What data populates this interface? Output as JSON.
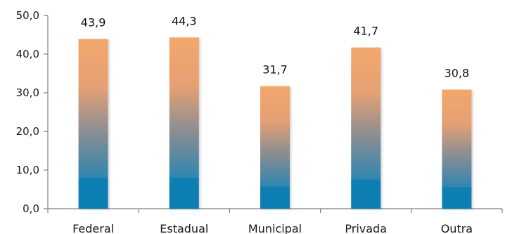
{
  "chart_data": {
    "type": "bar",
    "categories": [
      "Federal",
      "Estadual",
      "Municipal",
      "Privada",
      "Outra"
    ],
    "values": [
      43.9,
      44.3,
      31.7,
      41.7,
      30.8
    ],
    "value_labels": [
      "43,9",
      "44,3",
      "31,7",
      "41,7",
      "30,8"
    ],
    "ylim": [
      0,
      50
    ],
    "y_ticks": [
      0,
      10,
      20,
      30,
      40,
      50
    ],
    "y_tick_labels": [
      "0,0",
      "10,0",
      "20,0",
      "30,0",
      "40,0",
      "50,0"
    ],
    "grid": false,
    "legend": "none",
    "colors": {
      "bar_top": "#F2A76B",
      "bar_mid": "#7F8C96",
      "bar_bottom": "#0A7FB3",
      "axis": "#808080"
    }
  }
}
